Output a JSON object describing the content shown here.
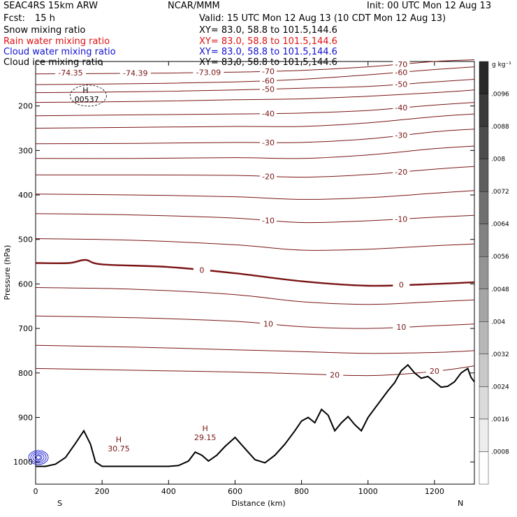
{
  "header": {
    "model": "SEAC4RS 15km ARW",
    "org": "NCAR/MMM",
    "init": "Init: 00 UTC Mon 12 Aug 13",
    "fcst_label": "Fcst:",
    "fcst_value": "15 h",
    "valid": "Valid: 15 UTC Mon 12 Aug 13 (10 CDT Mon 12 Aug 13)"
  },
  "fields": [
    {
      "name": "Snow mixing ratio",
      "xy": "XY=  83.0, 58.8 to 101.5,144.6",
      "color": "#000000"
    },
    {
      "name": "Rain water mixing ratio",
      "xy": "XY=  83.0, 58.8 to 101.5,144.6",
      "color": "#e01010"
    },
    {
      "name": "Cloud water mixing ratio",
      "xy": "XY=  83.0, 58.8 to 101.5,144.6",
      "color": "#1010d0"
    },
    {
      "name": "Cloud ice mixing ratio",
      "xy": "XY=  83.0, 58.8 to 101.5,144.6",
      "color": "#000000"
    }
  ],
  "chart_data": {
    "type": "contour",
    "xlabel": "Distance (km)",
    "ylabel": "Pressure (hPa)",
    "xlim": [
      0,
      1320
    ],
    "ylim": [
      1050,
      100
    ],
    "xticks": [
      0,
      200,
      400,
      600,
      800,
      1000,
      1200
    ],
    "yticks": [
      200,
      300,
      400,
      500,
      600,
      700,
      800,
      900,
      1000
    ],
    "left_end_label": "S",
    "right_end_label": "N",
    "colorbar": {
      "unit": "g kg⁻¹",
      "ticks": [
        ".0096",
        ".0088",
        ".008",
        ".0072",
        ".0064",
        ".0056",
        ".0048",
        ".004",
        ".0032",
        ".0024",
        ".0016",
        ".0008"
      ]
    },
    "temperature_contours": [
      {
        "label": "-70",
        "points": [
          [
            0,
            128
          ],
          [
            200,
            127
          ],
          [
            400,
            126
          ],
          [
            600,
            124
          ],
          [
            800,
            120
          ],
          [
            1000,
            112
          ],
          [
            1200,
            100
          ],
          [
            1320,
            96
          ]
        ]
      },
      {
        "label": "-60",
        "points": [
          [
            0,
            152
          ],
          [
            300,
            150
          ],
          [
            600,
            146
          ],
          [
            800,
            140
          ],
          [
            1000,
            130
          ],
          [
            1200,
            118
          ],
          [
            1320,
            112
          ]
        ]
      },
      {
        "label": "-50",
        "points": [
          [
            0,
            170
          ],
          [
            300,
            168
          ],
          [
            600,
            164
          ],
          [
            800,
            160
          ],
          [
            1000,
            156
          ],
          [
            1200,
            146
          ],
          [
            1320,
            140
          ]
        ]
      },
      {
        "label": "",
        "points": [
          [
            0,
            192
          ],
          [
            300,
            190
          ],
          [
            600,
            186
          ],
          [
            800,
            184
          ],
          [
            1000,
            178
          ],
          [
            1200,
            170
          ],
          [
            1320,
            164
          ]
        ]
      },
      {
        "label": "-40",
        "points": [
          [
            0,
            222
          ],
          [
            300,
            220
          ],
          [
            600,
            218
          ],
          [
            800,
            216
          ],
          [
            1000,
            210
          ],
          [
            1200,
            198
          ],
          [
            1320,
            192
          ]
        ]
      },
      {
        "label": "",
        "points": [
          [
            0,
            250
          ],
          [
            300,
            248
          ],
          [
            600,
            246
          ],
          [
            800,
            246
          ],
          [
            1000,
            238
          ],
          [
            1200,
            224
          ],
          [
            1320,
            218
          ]
        ]
      },
      {
        "label": "-30",
        "points": [
          [
            0,
            285
          ],
          [
            300,
            284
          ],
          [
            600,
            282
          ],
          [
            800,
            282
          ],
          [
            1000,
            274
          ],
          [
            1200,
            258
          ],
          [
            1320,
            252
          ]
        ]
      },
      {
        "label": "",
        "points": [
          [
            0,
            318
          ],
          [
            300,
            318
          ],
          [
            600,
            316
          ],
          [
            800,
            318
          ],
          [
            1000,
            310
          ],
          [
            1200,
            296
          ],
          [
            1320,
            290
          ]
        ]
      },
      {
        "label": "-20",
        "points": [
          [
            0,
            355
          ],
          [
            300,
            355
          ],
          [
            600,
            356
          ],
          [
            800,
            360
          ],
          [
            1000,
            354
          ],
          [
            1200,
            342
          ],
          [
            1320,
            336
          ]
        ]
      },
      {
        "label": "",
        "points": [
          [
            0,
            398
          ],
          [
            300,
            400
          ],
          [
            600,
            404
          ],
          [
            800,
            410
          ],
          [
            1000,
            406
          ],
          [
            1200,
            396
          ],
          [
            1320,
            390
          ]
        ]
      },
      {
        "label": "-10",
        "points": [
          [
            0,
            442
          ],
          [
            300,
            445
          ],
          [
            600,
            452
          ],
          [
            800,
            462
          ],
          [
            1000,
            458
          ],
          [
            1200,
            450
          ],
          [
            1320,
            446
          ]
        ]
      },
      {
        "label": "",
        "points": [
          [
            0,
            498
          ],
          [
            300,
            502
          ],
          [
            600,
            512
          ],
          [
            800,
            524
          ],
          [
            1000,
            522
          ],
          [
            1200,
            514
          ],
          [
            1320,
            510
          ]
        ]
      },
      {
        "label": "0",
        "bold": true,
        "points": [
          [
            0,
            553
          ],
          [
            100,
            553
          ],
          [
            150,
            546
          ],
          [
            200,
            556
          ],
          [
            400,
            562
          ],
          [
            600,
            576
          ],
          [
            800,
            594
          ],
          [
            1000,
            604
          ],
          [
            1200,
            600
          ],
          [
            1320,
            596
          ]
        ]
      },
      {
        "label": "",
        "points": [
          [
            0,
            608
          ],
          [
            300,
            612
          ],
          [
            600,
            624
          ],
          [
            800,
            640
          ],
          [
            1000,
            646
          ],
          [
            1200,
            640
          ],
          [
            1320,
            636
          ]
        ]
      },
      {
        "label": "10",
        "points": [
          [
            0,
            672
          ],
          [
            300,
            676
          ],
          [
            600,
            684
          ],
          [
            800,
            696
          ],
          [
            1000,
            700
          ],
          [
            1200,
            694
          ],
          [
            1320,
            690
          ]
        ]
      },
      {
        "label": "",
        "points": [
          [
            0,
            738
          ],
          [
            300,
            742
          ],
          [
            600,
            748
          ],
          [
            800,
            752
          ],
          [
            1000,
            756
          ],
          [
            1200,
            754
          ],
          [
            1320,
            750
          ]
        ]
      },
      {
        "label": "20",
        "points": [
          [
            0,
            790
          ],
          [
            300,
            794
          ],
          [
            600,
            798
          ],
          [
            800,
            802
          ],
          [
            1000,
            806
          ],
          [
            1150,
            800
          ],
          [
            1250,
            792
          ],
          [
            1320,
            784
          ]
        ]
      }
    ],
    "high_markers": [
      {
        "letter": "H",
        "value": ".00537",
        "x": 150,
        "p": 180
      },
      {
        "letter": "H",
        "value": "30.75",
        "x": 250,
        "p": 965
      },
      {
        "letter": "H",
        "value": "29.15",
        "x": 510,
        "p": 940
      }
    ],
    "contour_value_labels": [
      {
        "text": "-74.35",
        "x": 105,
        "p": 125
      },
      {
        "text": "-74.39",
        "x": 300,
        "p": 126
      },
      {
        "text": "-73.09",
        "x": 520,
        "p": 124
      }
    ],
    "terrain": [
      [
        0,
        1010
      ],
      [
        30,
        1010
      ],
      [
        60,
        1005
      ],
      [
        90,
        990
      ],
      [
        120,
        958
      ],
      [
        145,
        930
      ],
      [
        165,
        960
      ],
      [
        180,
        1000
      ],
      [
        200,
        1010
      ],
      [
        400,
        1010
      ],
      [
        430,
        1008
      ],
      [
        460,
        998
      ],
      [
        480,
        978
      ],
      [
        500,
        985
      ],
      [
        520,
        998
      ],
      [
        545,
        985
      ],
      [
        570,
        965
      ],
      [
        600,
        945
      ],
      [
        630,
        970
      ],
      [
        660,
        995
      ],
      [
        690,
        1002
      ],
      [
        720,
        985
      ],
      [
        750,
        960
      ],
      [
        780,
        930
      ],
      [
        800,
        908
      ],
      [
        820,
        900
      ],
      [
        840,
        912
      ],
      [
        860,
        882
      ],
      [
        880,
        895
      ],
      [
        900,
        930
      ],
      [
        920,
        912
      ],
      [
        940,
        898
      ],
      [
        960,
        916
      ],
      [
        980,
        930
      ],
      [
        1000,
        900
      ],
      [
        1020,
        880
      ],
      [
        1040,
        860
      ],
      [
        1060,
        840
      ],
      [
        1080,
        822
      ],
      [
        1100,
        795
      ],
      [
        1120,
        782
      ],
      [
        1140,
        800
      ],
      [
        1160,
        812
      ],
      [
        1180,
        808
      ],
      [
        1200,
        820
      ],
      [
        1220,
        832
      ],
      [
        1240,
        830
      ],
      [
        1260,
        820
      ],
      [
        1280,
        800
      ],
      [
        1300,
        790
      ],
      [
        1310,
        810
      ],
      [
        1320,
        820
      ]
    ]
  }
}
